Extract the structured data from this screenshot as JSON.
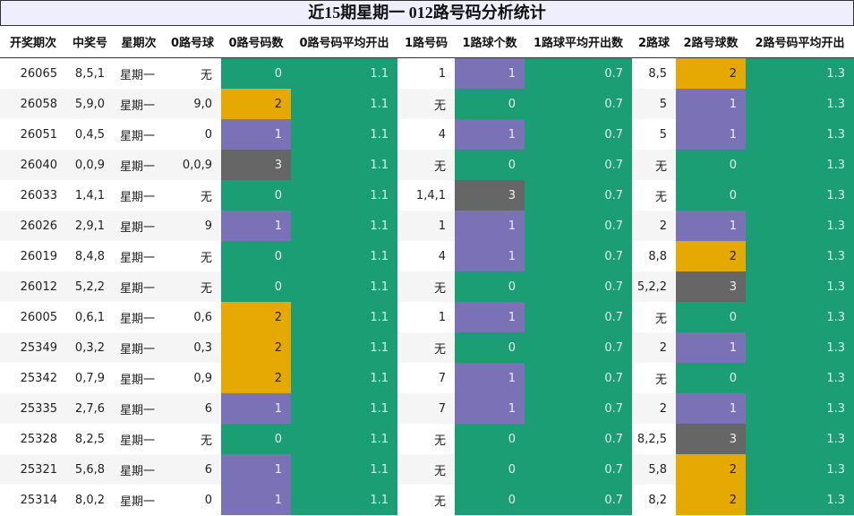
{
  "title": "近15期星期一 012路号码分析统计",
  "table": {
    "header": [
      "开奖期次",
      "中奖号",
      "星期次",
      "0路号球",
      "0路号码数",
      "0路号码平均开出",
      "1路号码",
      "1路球个数",
      "1路球平均开出数",
      "2路球",
      "2路号球数",
      "2路号码平均开出"
    ],
    "rows": [
      [
        "26065",
        "8,5,1",
        "星期一",
        "无",
        0,
        1.1,
        "1",
        1,
        0.7,
        "8,5",
        2,
        1.3
      ],
      [
        "26058",
        "5,9,0",
        "星期一",
        "9,0",
        2,
        1.1,
        "无",
        0,
        0.7,
        "5",
        1,
        1.3
      ],
      [
        "26051",
        "0,4,5",
        "星期一",
        "0",
        1,
        1.1,
        "4",
        1,
        0.7,
        "5",
        1,
        1.3
      ],
      [
        "26040",
        "0,0,9",
        "星期一",
        "0,0,9",
        3,
        1.1,
        "无",
        0,
        0.7,
        "无",
        0,
        1.3
      ],
      [
        "26033",
        "1,4,1",
        "星期一",
        "无",
        0,
        1.1,
        "1,4,1",
        3,
        0.7,
        "无",
        0,
        1.3
      ],
      [
        "26026",
        "2,9,1",
        "星期一",
        "9",
        1,
        1.1,
        "1",
        1,
        0.7,
        "2",
        1,
        1.3
      ],
      [
        "26019",
        "8,4,8",
        "星期一",
        "无",
        0,
        1.1,
        "4",
        1,
        0.7,
        "8,8",
        2,
        1.3
      ],
      [
        "26012",
        "5,2,2",
        "星期一",
        "无",
        0,
        1.1,
        "无",
        0,
        0.7,
        "5,2,2",
        3,
        1.3
      ],
      [
        "26005",
        "0,6,1",
        "星期一",
        "0,6",
        2,
        1.1,
        "1",
        1,
        0.7,
        "无",
        0,
        1.3
      ],
      [
        "25349",
        "0,3,2",
        "星期一",
        "0,3",
        2,
        1.1,
        "无",
        0,
        0.7,
        "2",
        1,
        1.3
      ],
      [
        "25342",
        "0,7,9",
        "星期一",
        "0,9",
        2,
        1.1,
        "7",
        1,
        0.7,
        "无",
        0,
        1.3
      ],
      [
        "25335",
        "2,7,6",
        "星期一",
        "6",
        1,
        1.1,
        "7",
        1,
        0.7,
        "2",
        1,
        1.3
      ],
      [
        "25328",
        "8,2,5",
        "星期一",
        "无",
        0,
        1.1,
        "无",
        0,
        0.7,
        "8,2,5",
        3,
        1.3
      ],
      [
        "25321",
        "5,6,8",
        "星期一",
        "6",
        1,
        1.1,
        "无",
        0,
        0.7,
        "5,8",
        2,
        1.3
      ],
      [
        "25314",
        "8,0,2",
        "星期一",
        "0",
        1,
        1.1,
        "无",
        0,
        0.7,
        "8,2",
        2,
        1.3
      ]
    ]
  }
}
